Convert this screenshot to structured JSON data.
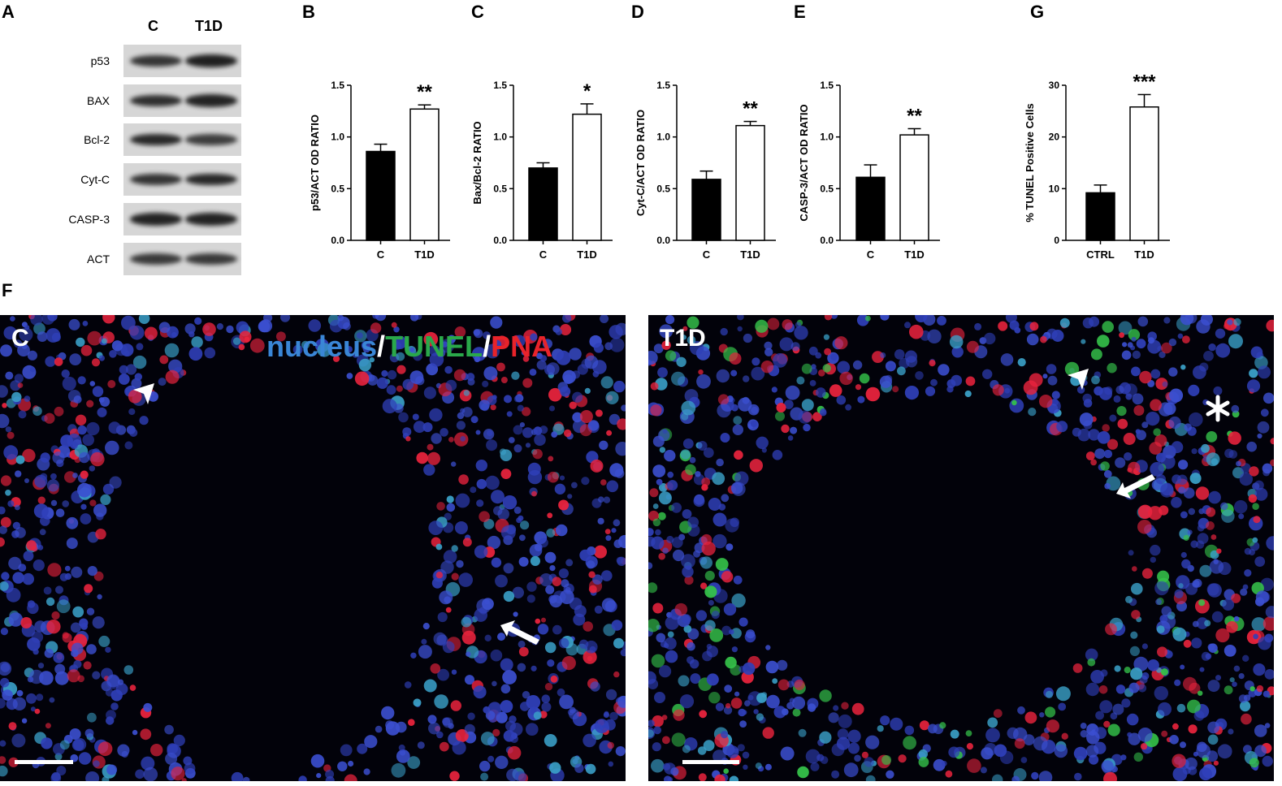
{
  "panels": {
    "A": "A",
    "B": "B",
    "C": "C",
    "D": "D",
    "E": "E",
    "G": "G",
    "F": "F"
  },
  "blot": {
    "headers": [
      "C",
      "T1D"
    ],
    "rows": [
      {
        "label": "p53",
        "c": 0.75,
        "t": 0.95
      },
      {
        "label": "BAX",
        "c": 0.8,
        "t": 0.9
      },
      {
        "label": "Bcl-2",
        "c": 0.85,
        "t": 0.65
      },
      {
        "label": "Cyt-C",
        "c": 0.75,
        "t": 0.85
      },
      {
        "label": "CASP-3",
        "c": 0.9,
        "t": 0.9
      },
      {
        "label": "ACT",
        "c": 0.7,
        "t": 0.7
      }
    ]
  },
  "chart_data": [
    {
      "panel": "B",
      "type": "bar",
      "categories": [
        "C",
        "T1D"
      ],
      "values": [
        0.86,
        1.27
      ],
      "errors": [
        0.07,
        0.04
      ],
      "ylabel": "p53/ACT OD RATIO",
      "ylim": [
        0,
        1.5
      ],
      "yticks": [
        "0.0",
        "0.5",
        "1.0",
        "1.5"
      ],
      "significance": "**"
    },
    {
      "panel": "C",
      "type": "bar",
      "categories": [
        "C",
        "T1D"
      ],
      "values": [
        0.7,
        1.22
      ],
      "errors": [
        0.05,
        0.1
      ],
      "ylabel": "Bax/Bcl-2 RATIO",
      "ylim": [
        0,
        1.5
      ],
      "yticks": [
        "0.0",
        "0.5",
        "1.0",
        "1.5"
      ],
      "significance": "*"
    },
    {
      "panel": "D",
      "type": "bar",
      "categories": [
        "C",
        "T1D"
      ],
      "values": [
        0.59,
        1.11
      ],
      "errors": [
        0.08,
        0.04
      ],
      "ylabel": "Cyt-C/ACT OD RATIO",
      "ylim": [
        0,
        1.5
      ],
      "yticks": [
        "0.0",
        "0.5",
        "1.0",
        "1.5"
      ],
      "significance": "**"
    },
    {
      "panel": "E",
      "type": "bar",
      "categories": [
        "C",
        "T1D"
      ],
      "values": [
        0.61,
        1.02
      ],
      "errors": [
        0.12,
        0.06
      ],
      "ylabel": "CASP-3/ACT OD RATIO",
      "ylim": [
        0,
        1.5
      ],
      "yticks": [
        "0.0",
        "0.5",
        "1.0",
        "1.5"
      ],
      "significance": "**"
    },
    {
      "panel": "G",
      "type": "bar",
      "categories": [
        "CTRL",
        "T1D"
      ],
      "values": [
        9.2,
        25.8
      ],
      "errors": [
        1.5,
        2.4
      ],
      "ylabel": "% TUNEL Positive Cells",
      "ylim": [
        0,
        30
      ],
      "yticks": [
        "0",
        "10",
        "20",
        "30"
      ],
      "significance": "***"
    }
  ],
  "micrographs": {
    "left_tag": "C",
    "right_tag": "T1D",
    "legend": {
      "nucleus": "nucleus",
      "slash1": "/",
      "tunel": "TUNEL",
      "slash2": "/",
      "pna": "PNA"
    }
  },
  "colors": {
    "nucleus": "#3a86d6",
    "tunel": "#2aa84a",
    "pna": "#e8232a",
    "dark_bar": "#000000",
    "light_bar": "#ffffff"
  }
}
